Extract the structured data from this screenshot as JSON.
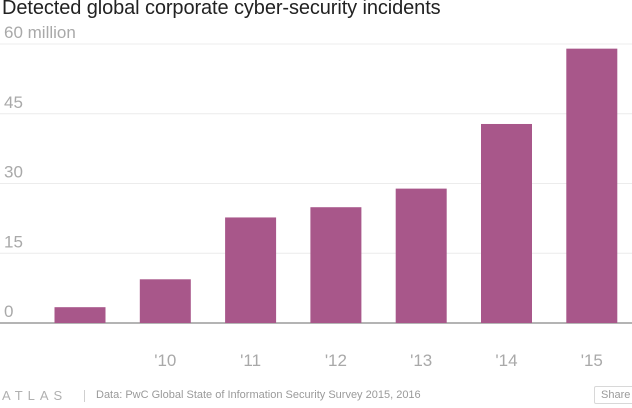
{
  "title": "Detected global corporate cyber-security incidents",
  "chart_data": {
    "type": "bar",
    "categories": [
      "",
      "'10",
      "'11",
      "'12",
      "'13",
      "'14",
      "'15"
    ],
    "values": [
      3.4,
      9.4,
      22.7,
      24.9,
      28.9,
      42.8,
      59.0
    ],
    "ylim": [
      0,
      60
    ],
    "yticks": [
      0,
      15,
      30,
      45,
      60
    ],
    "ytick_labels": [
      "0",
      "15",
      "30",
      "45",
      "60 million"
    ],
    "grid": true,
    "bar_color": "#a8578a"
  },
  "footer": {
    "logo": "ATLAS",
    "source": "Data: PwC Global State of Information Security Survey 2015, 2016",
    "share_label": "Share"
  }
}
